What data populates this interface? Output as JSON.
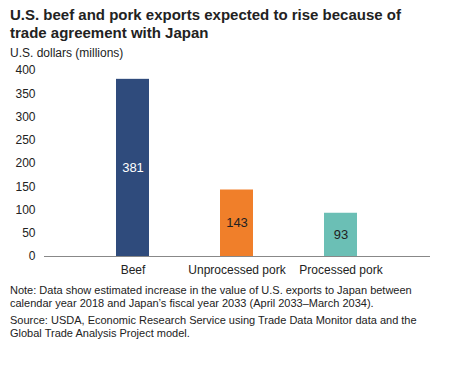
{
  "chart_data": {
    "type": "bar",
    "title": "U.S. beef and pork exports expected to rise because of trade agreement with Japan",
    "ylabel": "U.S. dollars (millions)",
    "categories": [
      "Beef",
      "Unprocessed pork",
      "Processed pork"
    ],
    "values": [
      381,
      143,
      93
    ],
    "colors": [
      "#2f4b7c",
      "#f07f2a",
      "#6bbfb5"
    ],
    "ylim": [
      0,
      400
    ],
    "yticks": [
      0,
      50,
      100,
      150,
      200,
      250,
      300,
      350,
      400
    ],
    "grid": false,
    "data_labels": true,
    "note": "Note: Data show estimated increase in the value of U.S. exports to Japan between calendar year 2018 and Japan’s fiscal year 2033 (April 2033–March 2034).",
    "source": "Source: USDA, Economic Research Service using Trade Data Monitor data and the Global Trade Analysis Project model."
  }
}
